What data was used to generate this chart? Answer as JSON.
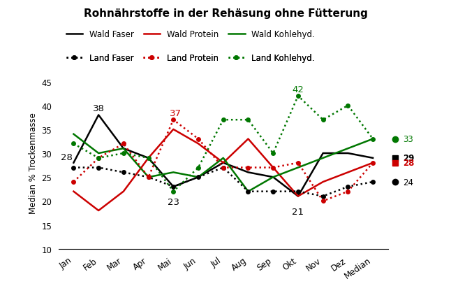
{
  "title": "Rohnährstoffe in der Rehäsung ohne Fütterung",
  "ylabel": "Median % Trockenmasse",
  "x_labels": [
    "Jan",
    "Feb",
    "Mar",
    "Apr",
    "Mai",
    "Jun",
    "Jul",
    "Aug",
    "Sep",
    "Okt",
    "Nov",
    "Dez",
    "Median"
  ],
  "wald_faser": [
    28,
    38,
    31,
    29,
    23,
    25,
    28,
    26,
    25,
    21,
    30,
    30,
    29
  ],
  "wald_protein": [
    22,
    18,
    22,
    29,
    35,
    32,
    28,
    33,
    27,
    21,
    24,
    26,
    28
  ],
  "wald_kohlehyd": [
    34,
    30,
    31,
    25,
    26,
    25,
    29,
    22,
    25,
    27,
    29,
    31,
    33
  ],
  "land_faser": [
    27,
    27,
    26,
    25,
    23,
    25,
    27,
    22,
    22,
    22,
    21,
    23,
    24
  ],
  "land_protein": [
    24,
    29,
    32,
    25,
    37,
    33,
    27,
    27,
    27,
    28,
    20,
    22,
    28
  ],
  "land_kohlehyd": [
    32,
    29,
    30,
    29,
    22,
    27,
    37,
    37,
    30,
    42,
    37,
    40,
    33
  ],
  "color_black": "#000000",
  "color_red": "#cc0000",
  "color_green": "#007700",
  "ylim": [
    10,
    46
  ],
  "yticks": [
    10,
    15,
    20,
    25,
    30,
    35,
    40,
    45
  ],
  "figsize": [
    6.46,
    4.1
  ],
  "dpi": 100,
  "median_green": 33,
  "median_black": 29,
  "median_red": 28,
  "median_dotblack": 24
}
